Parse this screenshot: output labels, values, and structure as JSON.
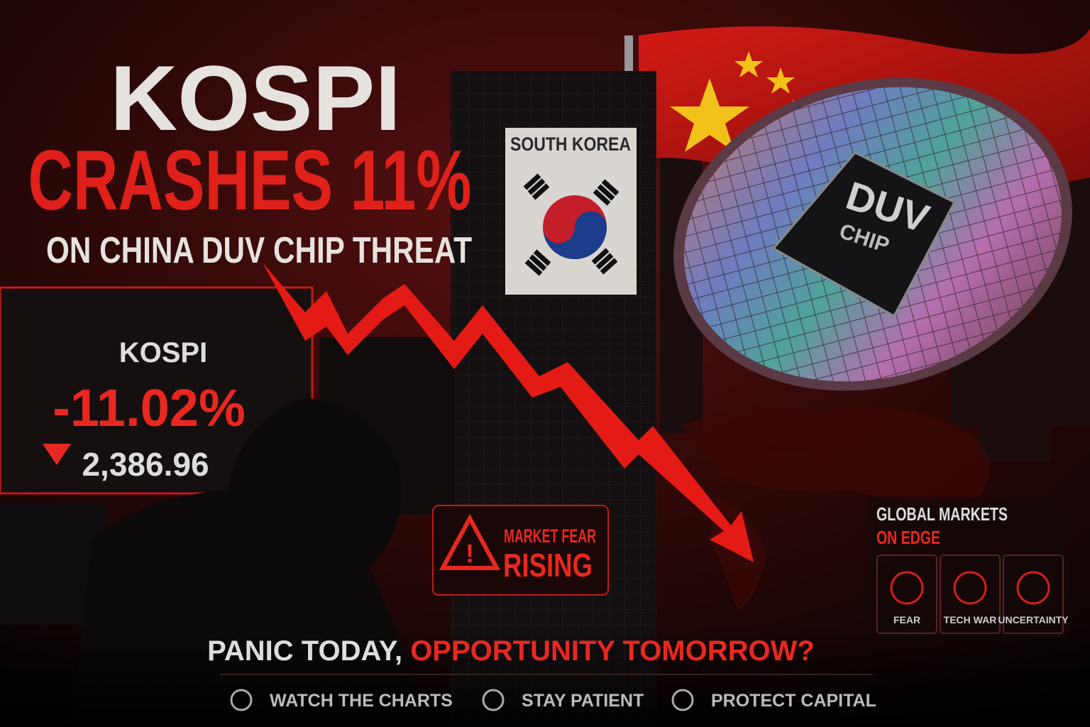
{
  "headline": {
    "line1": "KOSPI",
    "line2": "CRASHES 11%",
    "line3": "ON CHINA DUV CHIP THREAT"
  },
  "building_sign": "SOUTH KOREA",
  "chip": {
    "title": "DUV",
    "subtitle": "CHIP"
  },
  "ticker": {
    "name": "KOSPI",
    "change": "-11.02%",
    "level": "2,386.96"
  },
  "alert": {
    "line1": "MARKET FEAR",
    "line2": "RISING"
  },
  "global": {
    "line1": "GLOBAL MARKETS",
    "line2": "ON EDGE",
    "icons": [
      "FEAR",
      "TECH WAR",
      "UNCERTAINTY"
    ]
  },
  "tagline": {
    "part1": "PANIC TODAY,",
    "part2": "OPPORTUNITY TOMORROW?"
  },
  "footer": [
    "WATCH THE CHARTS",
    "STAY PATIENT",
    "PROTECT CAPITAL"
  ]
}
